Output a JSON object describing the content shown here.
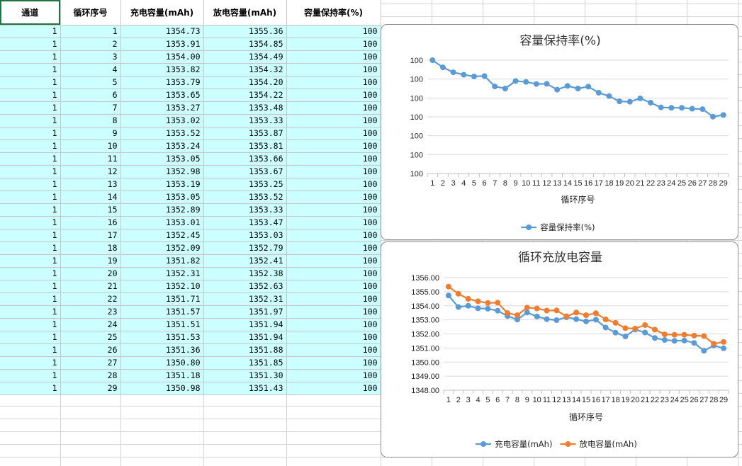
{
  "sheet": {
    "headers": [
      "通道",
      "循环序号",
      "充电容量(mAh)",
      "放电容量(mAh)",
      "容量保持率(%)"
    ],
    "rows": [
      [
        "1",
        "1",
        "1354.73",
        "1355.36",
        "100"
      ],
      [
        "1",
        "2",
        "1353.91",
        "1354.85",
        "100"
      ],
      [
        "1",
        "3",
        "1354.00",
        "1354.49",
        "100"
      ],
      [
        "1",
        "4",
        "1353.82",
        "1354.32",
        "100"
      ],
      [
        "1",
        "5",
        "1353.79",
        "1354.20",
        "100"
      ],
      [
        "1",
        "6",
        "1353.65",
        "1354.22",
        "100"
      ],
      [
        "1",
        "7",
        "1353.27",
        "1353.48",
        "100"
      ],
      [
        "1",
        "8",
        "1353.02",
        "1353.33",
        "100"
      ],
      [
        "1",
        "9",
        "1353.52",
        "1353.87",
        "100"
      ],
      [
        "1",
        "10",
        "1353.24",
        "1353.81",
        "100"
      ],
      [
        "1",
        "11",
        "1353.05",
        "1353.66",
        "100"
      ],
      [
        "1",
        "12",
        "1352.98",
        "1353.67",
        "100"
      ],
      [
        "1",
        "13",
        "1353.19",
        "1353.25",
        "100"
      ],
      [
        "1",
        "14",
        "1353.05",
        "1353.52",
        "100"
      ],
      [
        "1",
        "15",
        "1352.89",
        "1353.33",
        "100"
      ],
      [
        "1",
        "16",
        "1353.01",
        "1353.47",
        "100"
      ],
      [
        "1",
        "17",
        "1352.45",
        "1353.03",
        "100"
      ],
      [
        "1",
        "18",
        "1352.09",
        "1352.79",
        "100"
      ],
      [
        "1",
        "19",
        "1351.82",
        "1352.41",
        "100"
      ],
      [
        "1",
        "20",
        "1352.31",
        "1352.38",
        "100"
      ],
      [
        "1",
        "21",
        "1352.10",
        "1352.63",
        "100"
      ],
      [
        "1",
        "22",
        "1351.71",
        "1352.31",
        "100"
      ],
      [
        "1",
        "23",
        "1351.57",
        "1351.97",
        "100"
      ],
      [
        "1",
        "24",
        "1351.51",
        "1351.94",
        "100"
      ],
      [
        "1",
        "25",
        "1351.53",
        "1351.94",
        "100"
      ],
      [
        "1",
        "26",
        "1351.36",
        "1351.88",
        "100"
      ],
      [
        "1",
        "27",
        "1350.80",
        "1351.85",
        "100"
      ],
      [
        "1",
        "28",
        "1351.18",
        "1351.30",
        "100"
      ],
      [
        "1",
        "29",
        "1350.98",
        "1351.43",
        "100"
      ]
    ]
  },
  "chart_data": [
    {
      "type": "line",
      "title": "容量保持率(%)",
      "xlabel": "循环序号",
      "ylabel": "",
      "categories": [
        "1",
        "2",
        "3",
        "4",
        "5",
        "6",
        "7",
        "8",
        "9",
        "10",
        "11",
        "12",
        "13",
        "14",
        "15",
        "16",
        "17",
        "18",
        "19",
        "20",
        "21",
        "22",
        "23",
        "24",
        "25",
        "26",
        "27",
        "28",
        "29"
      ],
      "ytick_labels": [
        "100",
        "100",
        "100",
        "100",
        "100",
        "100",
        "100"
      ],
      "ylim": [
        99.94,
        100.0
      ],
      "series": [
        {
          "name": "容量保持率(%)",
          "color": "#5b9bd5",
          "values": [
            100.0,
            99.9962,
            99.9936,
            99.9923,
            99.9914,
            99.9916,
            99.9861,
            99.985,
            99.989,
            99.9885,
            99.9874,
            99.9875,
            99.9844,
            99.9864,
            99.985,
            99.986,
            99.9828,
            99.981,
            99.9782,
            99.978,
            99.9798,
            99.9775,
            99.975,
            99.9748,
            99.9748,
            99.9743,
            99.9741,
            99.9701,
            99.971
          ]
        }
      ],
      "legend": "bottom",
      "grid": true
    },
    {
      "type": "line",
      "title": "循环充放电容量",
      "xlabel": "循环序号",
      "ylabel": "",
      "categories": [
        "1",
        "2",
        "3",
        "4",
        "5",
        "6",
        "7",
        "8",
        "9",
        "10",
        "11",
        "12",
        "13",
        "14",
        "15",
        "16",
        "17",
        "18",
        "19",
        "20",
        "21",
        "22",
        "23",
        "24",
        "25",
        "26",
        "27",
        "28",
        "29"
      ],
      "ytick_labels": [
        "1348.00",
        "1349.00",
        "1350.00",
        "1351.00",
        "1352.00",
        "1353.00",
        "1354.00",
        "1355.00",
        "1356.00"
      ],
      "ylim": [
        1348,
        1356
      ],
      "series": [
        {
          "name": "充电容量(mAh)",
          "color": "#5b9bd5",
          "values": [
            1354.73,
            1353.91,
            1354.0,
            1353.82,
            1353.79,
            1353.65,
            1353.27,
            1353.02,
            1353.52,
            1353.24,
            1353.05,
            1352.98,
            1353.19,
            1353.05,
            1352.89,
            1353.01,
            1352.45,
            1352.09,
            1351.82,
            1352.31,
            1352.1,
            1351.71,
            1351.57,
            1351.51,
            1351.53,
            1351.36,
            1350.8,
            1351.18,
            1350.98
          ]
        },
        {
          "name": "放电容量(mAh)",
          "color": "#ed7d31",
          "values": [
            1355.36,
            1354.85,
            1354.49,
            1354.32,
            1354.2,
            1354.22,
            1353.48,
            1353.33,
            1353.87,
            1353.81,
            1353.66,
            1353.67,
            1353.25,
            1353.52,
            1353.33,
            1353.47,
            1353.03,
            1352.79,
            1352.41,
            1352.38,
            1352.63,
            1352.31,
            1351.97,
            1351.94,
            1351.94,
            1351.88,
            1351.85,
            1351.3,
            1351.43
          ]
        }
      ],
      "legend": "bottom",
      "grid": true
    }
  ]
}
